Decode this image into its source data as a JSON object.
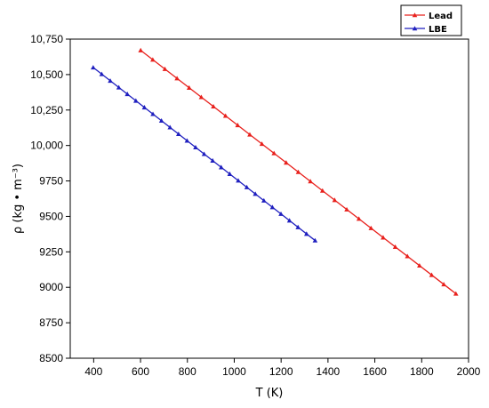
{
  "chart_data": {
    "type": "line",
    "xlabel": "T (K)",
    "ylabel": "ρ (kg • m⁻³)",
    "xlim": [
      300,
      2000
    ],
    "ylim": [
      8500,
      10750
    ],
    "x_ticks": [
      400,
      600,
      800,
      1000,
      1200,
      1400,
      1600,
      1800,
      2000
    ],
    "y_ticks": [
      "8500",
      "8750",
      "9000",
      "9250",
      "9500",
      "9750",
      "10,000",
      "10,250",
      "10,500",
      "10,750"
    ],
    "y_tick_values": [
      8500,
      8750,
      9000,
      9250,
      9500,
      9750,
      10000,
      10250,
      10500,
      10750
    ],
    "grid": false,
    "legend_position": "top-right",
    "series": [
      {
        "name": "Lead",
        "color": "#e8201c",
        "marker": "triangle",
        "x": [
          600.6,
          1946
        ],
        "y": [
          10671,
          8955
        ]
      },
      {
        "name": "LBE",
        "color": "#1f1fbf",
        "marker": "triangle",
        "x": [
          398,
          1345
        ],
        "y": [
          10550,
          9330
        ]
      }
    ]
  }
}
